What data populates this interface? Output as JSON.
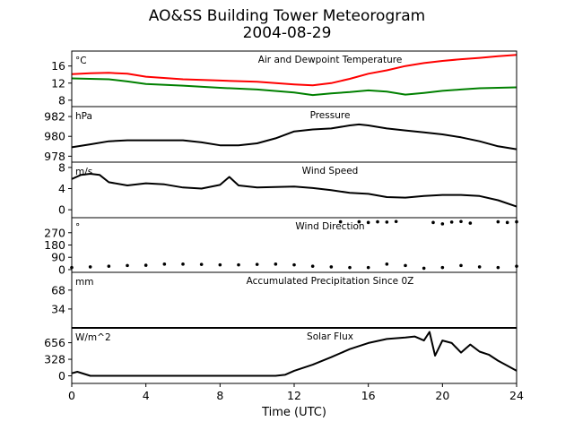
{
  "title": "AO&SS Building Tower Meteorogram",
  "subtitle": "2004-08-29",
  "xlabel": "Time (UTC)",
  "xticks": [
    "0",
    "4",
    "8",
    "12",
    "16",
    "20",
    "24"
  ],
  "chart_data": [
    {
      "type": "line",
      "title": "Air and Dewpoint Temperature",
      "ylabel": "°C",
      "xlim": [
        0,
        24
      ],
      "ylim": [
        6.5,
        19.5
      ],
      "yticks": [
        8,
        12,
        16
      ],
      "colors": [
        "#ff0000",
        "#008000"
      ],
      "series": [
        {
          "x": [
            0,
            1,
            2,
            3,
            4,
            6,
            8,
            10,
            12,
            13,
            14,
            15,
            16,
            17,
            18,
            19,
            20,
            21,
            22,
            23,
            24
          ],
          "values": [
            14.1,
            14.3,
            14.4,
            14.2,
            13.5,
            12.9,
            12.6,
            12.3,
            11.7,
            11.5,
            12.0,
            13.0,
            14.2,
            15.0,
            16.0,
            16.7,
            17.2,
            17.6,
            17.9,
            18.3,
            18.6
          ]
        },
        {
          "x": [
            0,
            1,
            2,
            3,
            4,
            6,
            8,
            10,
            12,
            13,
            14,
            15,
            16,
            17,
            18,
            19,
            20,
            21,
            22,
            23,
            24
          ],
          "values": [
            13.1,
            13.0,
            12.9,
            12.4,
            11.8,
            11.4,
            10.9,
            10.5,
            9.8,
            9.2,
            9.6,
            9.9,
            10.3,
            10.0,
            9.3,
            9.7,
            10.2,
            10.5,
            10.8,
            10.9,
            11.0
          ]
        }
      ]
    },
    {
      "type": "line",
      "title": "Pressure",
      "ylabel": "hPa",
      "xlim": [
        0,
        24
      ],
      "ylim": [
        977.4,
        983.0
      ],
      "yticks": [
        978,
        980,
        982
      ],
      "colors": [
        "#000000"
      ],
      "series": [
        {
          "x": [
            0,
            1,
            2,
            3,
            4,
            5,
            6,
            7,
            8,
            9,
            10,
            11,
            12,
            13,
            14,
            15,
            15.5,
            16,
            17,
            18,
            19,
            20,
            21,
            22,
            23,
            24
          ],
          "values": [
            978.9,
            979.2,
            979.5,
            979.6,
            979.6,
            979.6,
            979.6,
            979.4,
            979.1,
            979.1,
            979.3,
            979.8,
            980.5,
            980.7,
            980.8,
            981.1,
            981.2,
            981.1,
            980.8,
            980.6,
            980.4,
            980.2,
            979.9,
            979.5,
            979.0,
            978.7
          ]
        }
      ]
    },
    {
      "type": "line",
      "title": "Wind Speed",
      "ylabel": "m/s",
      "xlim": [
        0,
        24
      ],
      "ylim": [
        -1.5,
        9.0
      ],
      "yticks": [
        0,
        4,
        8
      ],
      "colors": [
        "#000000"
      ],
      "series": [
        {
          "x": [
            0,
            0.5,
            1,
            1.5,
            2,
            3,
            4,
            5,
            6,
            7,
            8,
            8.5,
            9,
            10,
            11,
            12,
            13,
            14,
            15,
            16,
            17,
            18,
            19,
            20,
            21,
            22,
            23,
            24
          ],
          "values": [
            5.8,
            6.6,
            6.8,
            6.6,
            5.2,
            4.6,
            5.0,
            4.8,
            4.2,
            4.0,
            4.7,
            6.2,
            4.6,
            4.2,
            4.3,
            4.4,
            4.1,
            3.7,
            3.2,
            3.0,
            2.4,
            2.3,
            2.6,
            2.8,
            2.8,
            2.6,
            1.8,
            0.6
          ]
        }
      ]
    },
    {
      "type": "scatter",
      "title": "Wind Direction",
      "ylabel": "°",
      "xlim": [
        0,
        24
      ],
      "ylim": [
        -20,
        380
      ],
      "yticks": [
        0,
        90,
        180,
        270
      ],
      "colors": [
        "#000000"
      ],
      "series": [
        {
          "x": [
            0,
            1,
            2,
            3,
            4,
            5,
            6,
            7,
            8,
            9,
            10,
            11,
            12,
            13,
            14,
            15,
            16,
            17,
            18,
            19,
            20,
            21,
            22,
            23,
            24
          ],
          "values": [
            15,
            20,
            25,
            30,
            32,
            40,
            40,
            38,
            35,
            35,
            38,
            40,
            35,
            25,
            20,
            15,
            15,
            40,
            30,
            10,
            15,
            30,
            20,
            15,
            25
          ]
        },
        {
          "x": [
            14.5,
            15.5,
            16,
            16.5,
            17,
            17.5,
            19.5,
            20,
            20.5,
            21,
            21.5,
            23,
            23.5,
            24
          ],
          "values": [
            350,
            350,
            345,
            350,
            348,
            352,
            345,
            335,
            348,
            352,
            340,
            350,
            345,
            350
          ]
        }
      ]
    },
    {
      "type": "line",
      "title": "Accumulated Precipitation Since 0Z",
      "ylabel": "mm",
      "xlim": [
        0,
        24
      ],
      "ylim": [
        0,
        100
      ],
      "yticks": [
        34,
        68
      ],
      "colors": [
        "#000000"
      ],
      "series": [
        {
          "x": [
            0,
            24
          ],
          "values": [
            0,
            0
          ]
        }
      ]
    },
    {
      "type": "line",
      "title": "Solar Flux",
      "ylabel": "W/m^2",
      "xlim": [
        0,
        24
      ],
      "ylim": [
        -150,
        950
      ],
      "yticks": [
        0,
        328,
        656
      ],
      "colors": [
        "#000000"
      ],
      "series": [
        {
          "x": [
            0,
            0.3,
            1,
            2,
            4,
            6,
            8,
            10,
            11,
            11.5,
            12,
            13,
            14,
            15,
            16,
            17,
            18,
            18.5,
            19,
            19.3,
            19.6,
            20,
            20.5,
            21,
            21.5,
            22,
            22.5,
            23,
            23.5,
            24
          ],
          "values": [
            50,
            80,
            0,
            0,
            0,
            0,
            0,
            0,
            0,
            20,
            100,
            220,
            370,
            530,
            650,
            730,
            760,
            780,
            700,
            870,
            400,
            700,
            650,
            460,
            620,
            480,
            420,
            300,
            200,
            100
          ]
        }
      ]
    }
  ]
}
